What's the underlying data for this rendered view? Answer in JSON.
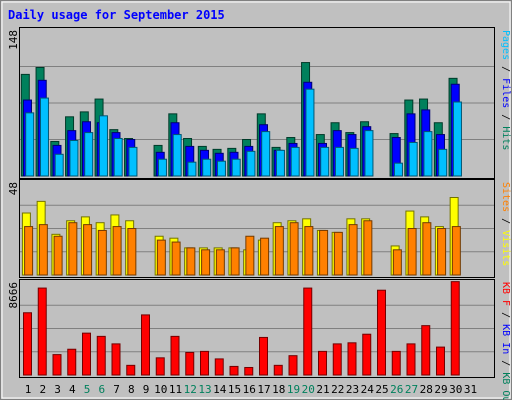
{
  "chart_data": [
    {
      "panel": "hits",
      "type": "bar",
      "title": "Daily usage for September 2015",
      "ymax_label": "148",
      "ylim": [
        0,
        148
      ],
      "grid": true,
      "categories": [
        "1",
        "2",
        "3",
        "4",
        "5",
        "6",
        "7",
        "8",
        "9",
        "10",
        "11",
        "12",
        "13",
        "14",
        "15",
        "16",
        "17",
        "18",
        "19",
        "20",
        "21",
        "22",
        "23",
        "24",
        "25",
        "26",
        "27",
        "28",
        "29",
        "30",
        "31"
      ],
      "weekend_days": [
        "5",
        "6",
        "12",
        "13",
        "19",
        "20",
        "26",
        "27"
      ],
      "right_label": [
        {
          "text": "Pages",
          "color": "#00c0ff"
        },
        {
          "text": " / ",
          "color": "#000000"
        },
        {
          "text": "Files",
          "color": "#0000ff"
        },
        {
          "text": " / ",
          "color": "#000000"
        },
        {
          "text": "Hits",
          "color": "#00805c"
        }
      ],
      "series": [
        {
          "key": "hits",
          "color": "#00805c",
          "values": [
            103,
            110,
            35,
            60,
            65,
            78,
            47,
            38,
            0,
            31,
            63,
            38,
            30,
            27,
            28,
            37,
            63,
            29,
            39,
            115,
            42,
            54,
            44,
            55,
            0,
            43,
            77,
            78,
            54,
            99,
            0
          ]
        },
        {
          "key": "files",
          "color": "#0000ff",
          "values": [
            77,
            97,
            31,
            46,
            55,
            54,
            44,
            37,
            0,
            24,
            54,
            30,
            26,
            23,
            24,
            30,
            52,
            26,
            33,
            95,
            33,
            46,
            42,
            50,
            0,
            39,
            63,
            67,
            42,
            93,
            0
          ]
        },
        {
          "key": "pages",
          "color": "#00c0ff",
          "values": [
            64,
            79,
            22,
            36,
            44,
            61,
            38,
            29,
            0,
            17,
            42,
            14,
            17,
            15,
            17,
            25,
            45,
            26,
            29,
            88,
            29,
            29,
            28,
            46,
            0,
            13,
            34,
            45,
            27,
            75,
            0
          ]
        }
      ]
    },
    {
      "panel": "visits",
      "type": "bar",
      "ymax_label": "48",
      "ylim": [
        0,
        48
      ],
      "grid": true,
      "categories": [
        "1",
        "2",
        "3",
        "4",
        "5",
        "6",
        "7",
        "8",
        "9",
        "10",
        "11",
        "12",
        "13",
        "14",
        "15",
        "16",
        "17",
        "18",
        "19",
        "20",
        "21",
        "22",
        "23",
        "24",
        "25",
        "26",
        "27",
        "28",
        "29",
        "30",
        "31"
      ],
      "right_label": [
        {
          "text": "Sites",
          "color": "#ff8000"
        },
        {
          "text": " / ",
          "color": "#000000"
        },
        {
          "text": "Visits",
          "color": "#ffff00"
        }
      ],
      "series": [
        {
          "key": "visits",
          "color": "#ffff00",
          "values": [
            32,
            38,
            21,
            28,
            30,
            27,
            31,
            28,
            0,
            20,
            19,
            14,
            14,
            14,
            14,
            13,
            18,
            27,
            28,
            29,
            23,
            22,
            29,
            29,
            0,
            15,
            33,
            30,
            25,
            40,
            0
          ]
        },
        {
          "key": "sites",
          "color": "#ff8000",
          "values": [
            25,
            26,
            20,
            27,
            26,
            23,
            25,
            24,
            0,
            18,
            17,
            14,
            13,
            13,
            14,
            20,
            19,
            25,
            27,
            25,
            23,
            22,
            26,
            28,
            0,
            13,
            24,
            27,
            24,
            25,
            0
          ]
        }
      ]
    },
    {
      "panel": "kbytes",
      "type": "bar",
      "ymax_label": "8666",
      "ylim": [
        0,
        8666
      ],
      "grid": true,
      "categories": [
        "1",
        "2",
        "3",
        "4",
        "5",
        "6",
        "7",
        "8",
        "9",
        "10",
        "11",
        "12",
        "13",
        "14",
        "15",
        "16",
        "17",
        "18",
        "19",
        "20",
        "21",
        "22",
        "23",
        "24",
        "25",
        "26",
        "27",
        "28",
        "29",
        "30",
        "31"
      ],
      "right_label": [
        {
          "text": "KB F",
          "color": "#ff0000"
        },
        {
          "text": " / ",
          "color": "#000000"
        },
        {
          "text": "KB In",
          "color": "#0000ff"
        },
        {
          "text": " / ",
          "color": "#000000"
        },
        {
          "text": "KB Out",
          "color": "#00805c"
        }
      ],
      "series": [
        {
          "key": "kb_f",
          "color": "#ff0000",
          "values": [
            5800,
            8100,
            1900,
            2400,
            3900,
            3600,
            2900,
            900,
            5600,
            1600,
            3600,
            2100,
            2200,
            1500,
            800,
            700,
            3500,
            900,
            1800,
            8100,
            2200,
            2900,
            3000,
            3800,
            7900,
            2200,
            2900,
            4600,
            2600,
            8700,
            0
          ]
        }
      ]
    }
  ]
}
